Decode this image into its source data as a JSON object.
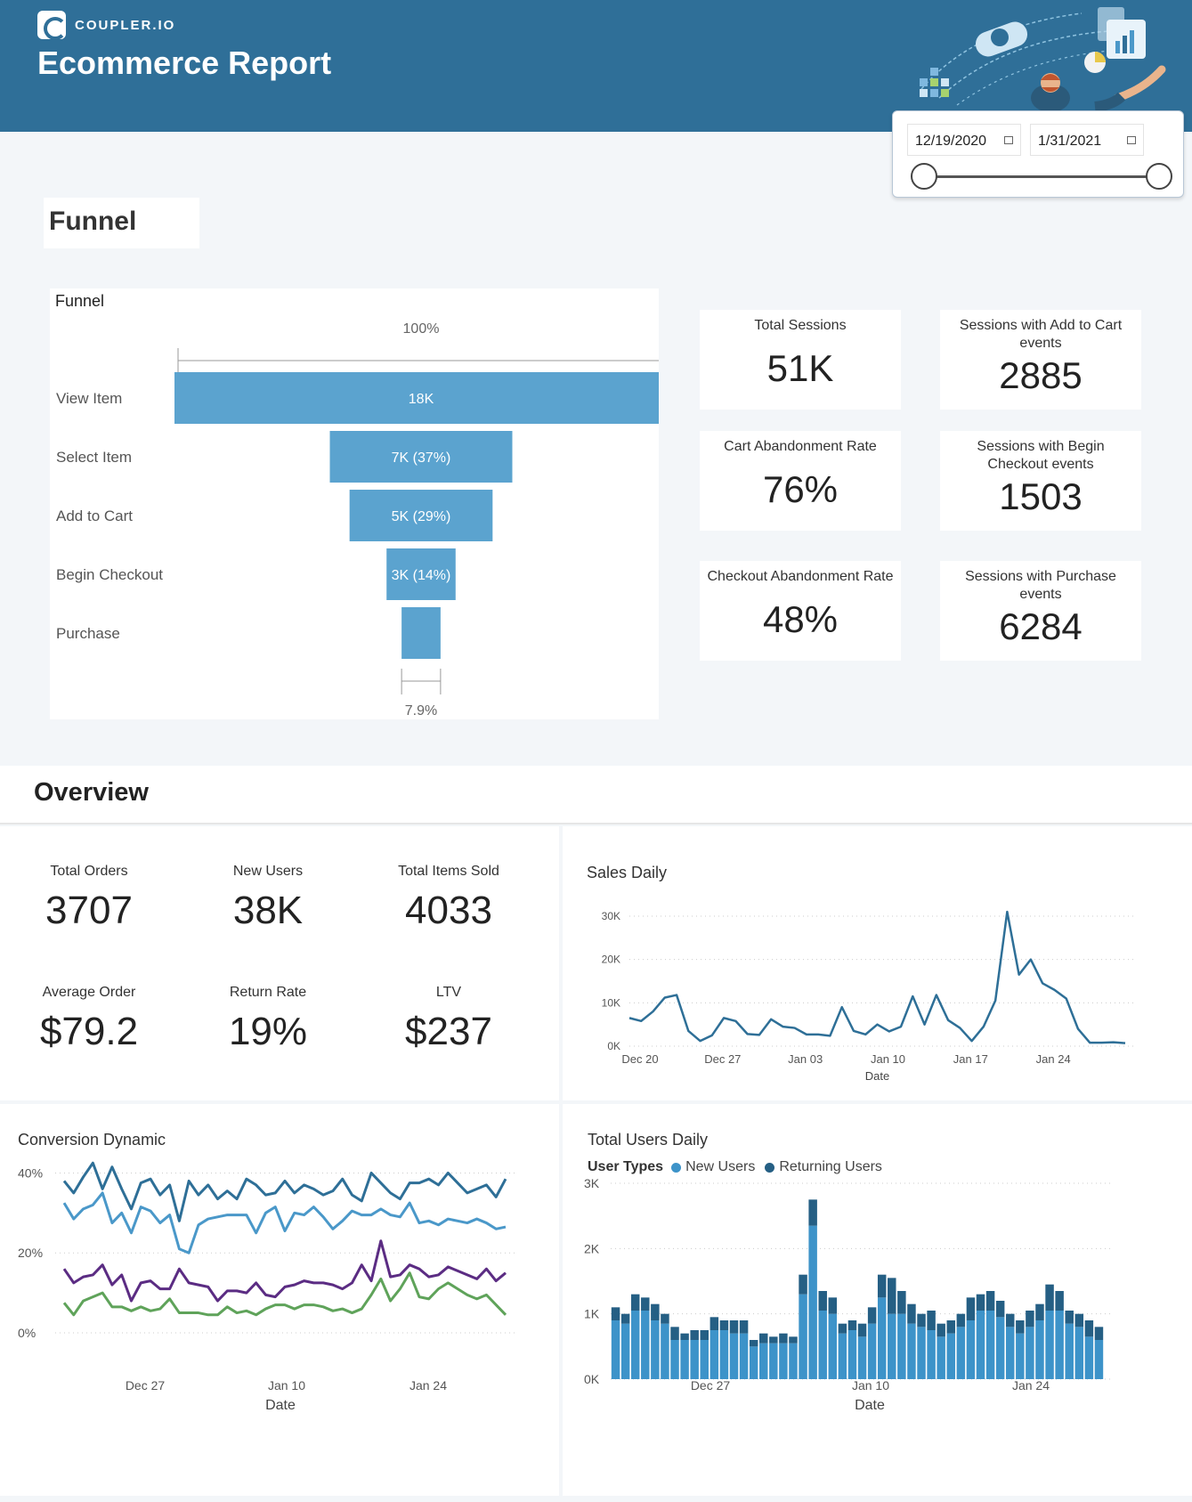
{
  "brand": {
    "logo_text": "COUPLER.IO"
  },
  "header": {
    "title": "Ecommerce Report"
  },
  "date_range": {
    "start": "12/19/2020",
    "end": "1/31/2021"
  },
  "funnel_section": {
    "title": "Funnel"
  },
  "funnel_chart": {
    "title": "Funnel",
    "top_label": "100%",
    "bottom_label": "7.9%",
    "steps": [
      {
        "name": "View Item",
        "label": "18K",
        "fraction": 1.0
      },
      {
        "name": "Select Item",
        "label": "7K (37%)",
        "fraction": 0.37
      },
      {
        "name": "Add to Cart",
        "label": "5K (29%)",
        "fraction": 0.29
      },
      {
        "name": "Begin Checkout",
        "label": "3K (14%)",
        "fraction": 0.14
      },
      {
        "name": "Purchase",
        "label": "",
        "fraction": 0.079
      }
    ]
  },
  "kpis": {
    "total_sessions": {
      "label": "Total Sessions",
      "value": "51K"
    },
    "add_to_cart": {
      "label": "Sessions with Add to Cart events",
      "value": "2885"
    },
    "cart_abandonment": {
      "label": "Cart Abandonment Rate",
      "value": "76%"
    },
    "begin_checkout": {
      "label": "Sessions with Begin Checkout events",
      "value": "1503"
    },
    "checkout_abandonment": {
      "label": "Checkout Abandonment Rate",
      "value": "48%"
    },
    "purchase": {
      "label": "Sessions with Purchase events",
      "value": "6284"
    }
  },
  "overview": {
    "title": "Overview",
    "stats": {
      "total_orders": {
        "label": "Total Orders",
        "value": "3707"
      },
      "new_users": {
        "label": "New Users",
        "value": "38K"
      },
      "total_items": {
        "label": "Total Items Sold",
        "value": "4033"
      },
      "avg_order": {
        "label": "Average Order",
        "value": "$79.2"
      },
      "return_rate": {
        "label": "Return Rate",
        "value": "19%"
      },
      "ltv": {
        "label": "LTV",
        "value": "$237"
      }
    }
  },
  "colors": {
    "header_bg": "#2f6f98",
    "bar": "#5ba3cf",
    "line_dark": "#2e6f97",
    "purple": "#5b2c83",
    "green": "#5fa35a",
    "light_blue": "#4a98c9",
    "new_users": "#3d93c9",
    "returning_users": "#255f84"
  },
  "chart_data": [
    {
      "type": "line",
      "title": "Sales Daily",
      "xlabel": "Date",
      "ylabel": "",
      "ylim": [
        0,
        30000
      ],
      "yticks": [
        "0K",
        "10K",
        "20K",
        "30K"
      ],
      "xticks": [
        "Dec 20",
        "Dec 27",
        "Jan 03",
        "Jan 10",
        "Jan 17",
        "Jan 24"
      ],
      "x_start_offset": -1,
      "values": [
        6500,
        5800,
        8000,
        11200,
        11800,
        3500,
        1200,
        2500,
        6500,
        5800,
        2800,
        2600,
        6200,
        4500,
        4200,
        2700,
        2700,
        2400,
        9000,
        3500,
        2700,
        5000,
        3400,
        4500,
        11500,
        5000,
        11800,
        6000,
        4200,
        1200,
        4500,
        10500,
        31000,
        16500,
        20000,
        14500,
        13000,
        11000,
        4000,
        800,
        800,
        900,
        700
      ]
    },
    {
      "type": "line",
      "title": "Conversion Dynamic",
      "xlabel": "Date",
      "ylim": [
        0,
        45
      ],
      "yticks": [
        "0%",
        "20%",
        "40%"
      ],
      "xticks": [
        "Dec 27",
        "Jan 10",
        "Jan 24"
      ],
      "series": [
        {
          "name": "series-1",
          "color": "#2e6f97",
          "values": [
            38,
            35,
            39,
            42.5,
            36,
            41.5,
            36,
            31,
            37.5,
            38.5,
            34.5,
            37,
            28,
            38,
            34.5,
            37,
            33.5,
            35.5,
            33.5,
            38.5,
            37,
            34.5,
            35,
            38,
            35,
            37,
            36,
            34.5,
            35.5,
            38.5,
            34.5,
            33,
            40,
            37.5,
            35,
            33.5,
            37.5,
            37.5,
            38.5,
            37,
            40,
            37.5,
            35,
            36,
            37,
            34,
            38.5
          ]
        },
        {
          "name": "series-2",
          "color": "#4a98c9",
          "values": [
            32.5,
            28.5,
            31,
            32,
            35,
            27.5,
            30,
            25,
            31.5,
            30.5,
            27.5,
            29.5,
            21,
            20,
            27,
            28.5,
            29,
            29.5,
            29.5,
            29.5,
            25,
            30,
            31.5,
            25.5,
            30,
            29.5,
            31.5,
            29,
            26,
            28,
            30.5,
            29.5,
            29.5,
            31,
            29.5,
            29,
            32.5,
            27.5,
            28,
            27,
            28.5,
            28,
            27.5,
            28.5,
            27.5,
            26,
            26.5
          ]
        },
        {
          "name": "series-3",
          "color": "#5b2c83",
          "values": [
            16,
            12.5,
            14,
            14.5,
            17,
            12,
            14.5,
            8,
            12.5,
            13,
            11,
            11,
            16,
            12.5,
            12,
            11.5,
            8,
            10.5,
            10.5,
            10,
            12.5,
            9.5,
            9,
            11.5,
            12,
            13,
            12.5,
            12.5,
            12,
            11,
            12.5,
            17,
            13,
            23,
            14,
            14.5,
            17,
            16,
            14,
            14.5,
            16.5,
            15.5,
            14.5,
            13.5,
            16,
            13,
            15
          ]
        },
        {
          "name": "series-4",
          "color": "#5fa35a",
          "values": [
            7.5,
            4.5,
            8,
            9,
            10,
            6.5,
            6.5,
            5.5,
            6.5,
            5.5,
            6,
            8.5,
            5,
            5,
            5,
            4.5,
            4.5,
            6.5,
            5,
            5.5,
            4.5,
            6,
            7,
            7,
            6,
            7,
            7,
            6.5,
            5.5,
            6,
            5,
            6,
            9.5,
            13.5,
            8,
            11,
            15,
            9,
            8.5,
            11,
            12.5,
            11,
            9.5,
            8.5,
            9.5,
            7,
            4.5
          ]
        }
      ]
    },
    {
      "type": "bar",
      "title": "Total Users Daily",
      "legend_title": "User Types",
      "xlabel": "Date",
      "ylim": [
        0,
        3000
      ],
      "yticks": [
        "0K",
        "1K",
        "2K",
        "3K"
      ],
      "xticks": [
        "Dec 27",
        "Jan 10",
        "Jan 24"
      ],
      "series": [
        {
          "name": "New Users",
          "color": "#3d93c9",
          "values": [
            900,
            850,
            1050,
            1050,
            900,
            850,
            600,
            600,
            600,
            600,
            750,
            750,
            700,
            700,
            500,
            550,
            550,
            550,
            550,
            1300,
            2350,
            1050,
            1000,
            700,
            750,
            650,
            850,
            1250,
            1000,
            1000,
            850,
            800,
            750,
            650,
            700,
            800,
            900,
            1050,
            1050,
            950,
            800,
            700,
            800,
            900,
            1050,
            1050,
            850,
            800,
            650,
            600
          ]
        },
        {
          "name": "Returning Users",
          "color": "#255f84",
          "values": [
            200,
            150,
            250,
            200,
            250,
            150,
            200,
            100,
            150,
            150,
            200,
            150,
            200,
            200,
            100,
            150,
            100,
            150,
            100,
            300,
            400,
            300,
            250,
            150,
            150,
            200,
            250,
            350,
            550,
            350,
            300,
            200,
            300,
            200,
            200,
            200,
            350,
            250,
            300,
            250,
            200,
            200,
            250,
            250,
            400,
            300,
            200,
            200,
            250,
            200
          ]
        }
      ]
    }
  ]
}
